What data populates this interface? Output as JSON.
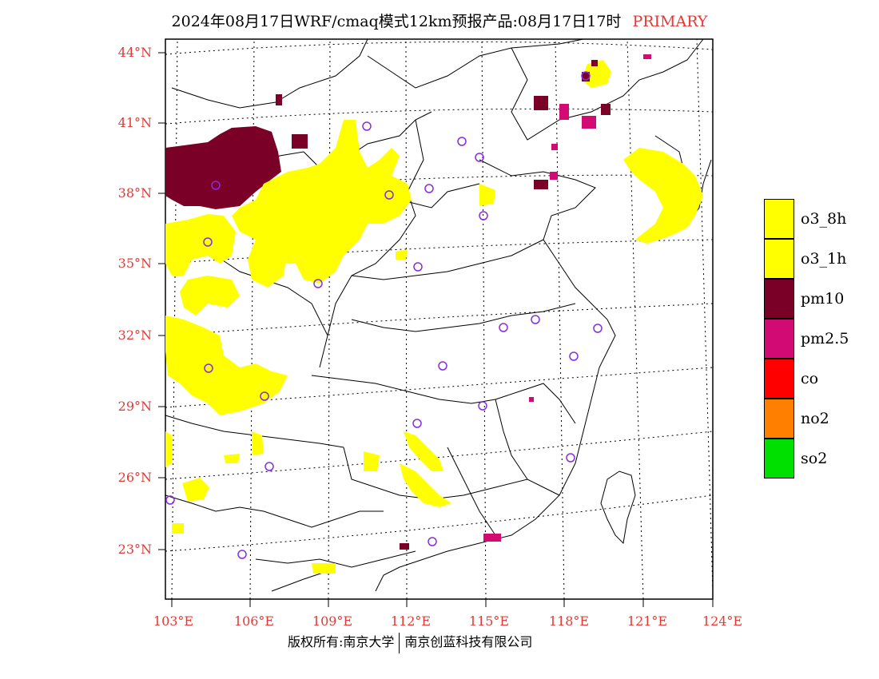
{
  "title": {
    "main": "2024年08月17日WRF/cmaq模式12km预报产品:08月17日17时",
    "tag": "PRIMARY"
  },
  "axes": {
    "lat_labels": [
      "44°N",
      "41°N",
      "38°N",
      "35°N",
      "32°N",
      "29°N",
      "26°N",
      "23°N"
    ],
    "lon_labels": [
      "103°E",
      "106°E",
      "109°E",
      "112°E",
      "115°E",
      "118°E",
      "121°E",
      "124°E"
    ]
  },
  "legend": [
    {
      "label": "o3_8h",
      "color": "#ffff00"
    },
    {
      "label": "o3_1h",
      "color": "#ffff00"
    },
    {
      "label": "pm10",
      "color": "#7b0028"
    },
    {
      "label": "pm2.5",
      "color": "#d10b73"
    },
    {
      "label": "co",
      "color": "#ff0000"
    },
    {
      "label": "no2",
      "color": "#ff7f00"
    },
    {
      "label": "so2",
      "color": "#00e000"
    }
  ],
  "footer": {
    "left": "版权所有:南京大学",
    "right": "南京创蓝科技有限公司"
  },
  "colors": {
    "o3": "#ffff00",
    "pm10": "#7b0028",
    "pm25": "#d10b73",
    "station": "#8a2be2",
    "axis_label": "#e53935"
  }
}
